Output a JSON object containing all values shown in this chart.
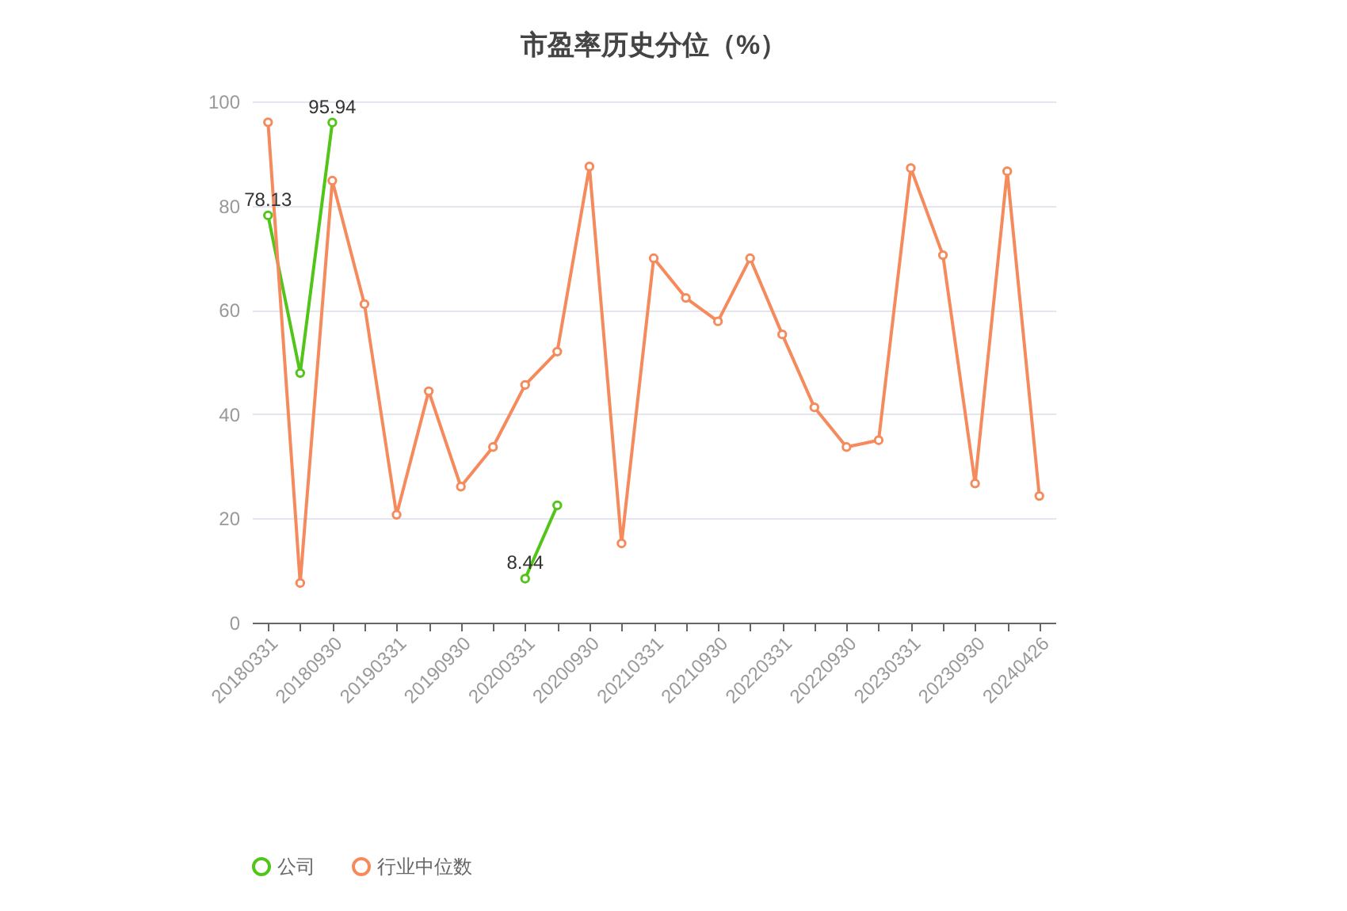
{
  "chart_data": {
    "type": "line",
    "title": "市盈率历史分位（%）",
    "categories": [
      "20180331",
      null,
      "20180930",
      null,
      "20190331",
      null,
      "20190930",
      null,
      "20200331",
      null,
      "20200930",
      null,
      "20210331",
      null,
      "20210930",
      null,
      "20220331",
      null,
      "20220930",
      null,
      "20230331",
      null,
      "20230930",
      null,
      "20240426"
    ],
    "series": [
      {
        "name": "公司",
        "color": "#52c41a",
        "values": [
          78.13,
          47.9,
          95.94,
          null,
          null,
          null,
          null,
          null,
          8.44,
          22.5,
          null,
          null,
          null,
          null,
          null,
          null,
          null,
          null,
          null,
          null,
          null,
          null,
          null,
          null,
          null
        ],
        "value_labels": [
          "78.13",
          null,
          "95.94",
          null,
          null,
          null,
          null,
          null,
          "8.44",
          null,
          null,
          null,
          null,
          null,
          null,
          null,
          null,
          null,
          null,
          null,
          null,
          null,
          null,
          null,
          null
        ]
      },
      {
        "name": "行业中位数",
        "color": "#f58a5c",
        "values": [
          96.0,
          7.6,
          84.8,
          61.1,
          20.7,
          44.4,
          26.1,
          33.7,
          45.6,
          52.0,
          87.5,
          15.2,
          69.9,
          62.3,
          57.8,
          69.9,
          55.3,
          41.3,
          33.7,
          35.0,
          87.2,
          70.5,
          26.7,
          86.6,
          24.3
        ]
      }
    ],
    "ylim": [
      0,
      100
    ],
    "yticks": [
      0,
      20,
      40,
      60,
      80,
      100
    ],
    "grid": "y",
    "legend": "bottom",
    "marker": "circle",
    "line_style": "solid"
  }
}
